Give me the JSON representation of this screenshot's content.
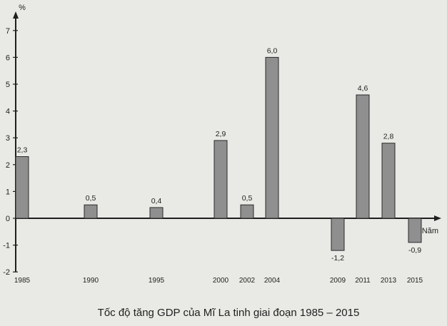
{
  "chart_data": {
    "type": "bar",
    "title": "Tốc độ tăng GDP của Mĩ La tinh giai đoạn 1985 – 2015",
    "ylabel": "%",
    "xlabel": "Năm",
    "categories": [
      "1985",
      "1990",
      "1995",
      "2000",
      "2002",
      "2004",
      "2009",
      "2011",
      "2013",
      "2015"
    ],
    "values": [
      2.3,
      0.5,
      0.4,
      2.9,
      0.5,
      6.0,
      -1.2,
      4.6,
      2.8,
      -0.9
    ],
    "value_labels": [
      "2,3",
      "0,5",
      "0,4",
      "2,9",
      "0,5",
      "6,0",
      "-1,2",
      "4,6",
      "2,8",
      "-0,9"
    ],
    "yticks": [
      "-2",
      "-1",
      "0",
      "1",
      "2",
      "3",
      "4",
      "5",
      "6",
      "7"
    ],
    "ylim": [
      -2,
      7
    ],
    "grid": false
  }
}
